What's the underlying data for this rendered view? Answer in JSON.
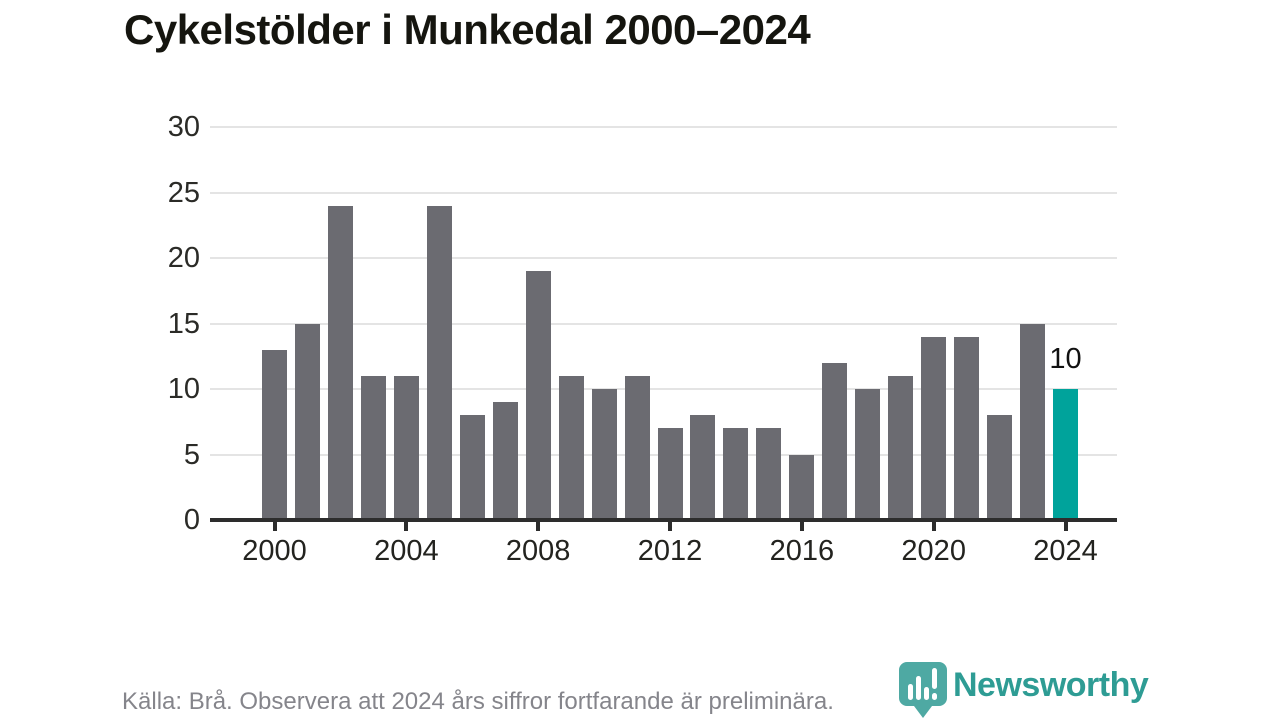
{
  "title": "Cykelstölder i Munkedal 2000–2024",
  "chart_data": {
    "type": "bar",
    "title": "Cykelstölder i Munkedal 2000–2024",
    "x": [
      2000,
      2001,
      2002,
      2003,
      2004,
      2005,
      2006,
      2007,
      2008,
      2009,
      2010,
      2011,
      2012,
      2013,
      2014,
      2015,
      2016,
      2017,
      2018,
      2019,
      2020,
      2021,
      2022,
      2023,
      2024
    ],
    "values": [
      13,
      15,
      24,
      11,
      11,
      24,
      8,
      9,
      19,
      11,
      10,
      11,
      7,
      8,
      7,
      7,
      5,
      12,
      10,
      11,
      14,
      14,
      8,
      15,
      10
    ],
    "xlabel": "",
    "ylabel": "",
    "ylim": [
      0,
      30
    ],
    "yticks": [
      0,
      5,
      10,
      15,
      20,
      25,
      30
    ],
    "xticks": [
      2000,
      2004,
      2008,
      2012,
      2016,
      2020,
      2024
    ],
    "grid": true,
    "legend": "none",
    "bar_color": "#6b6b71",
    "highlight_color": "#00a39b",
    "gridline_color": "#e4e4e4",
    "highlight_index": 24,
    "highlight_label": "10"
  },
  "footer": {
    "source_text": "Källa: Brå. Observera att 2024 års siffror fortfarande är preliminära.",
    "brand_name": "Newsworthy",
    "brand_color": "#2e9c94"
  }
}
